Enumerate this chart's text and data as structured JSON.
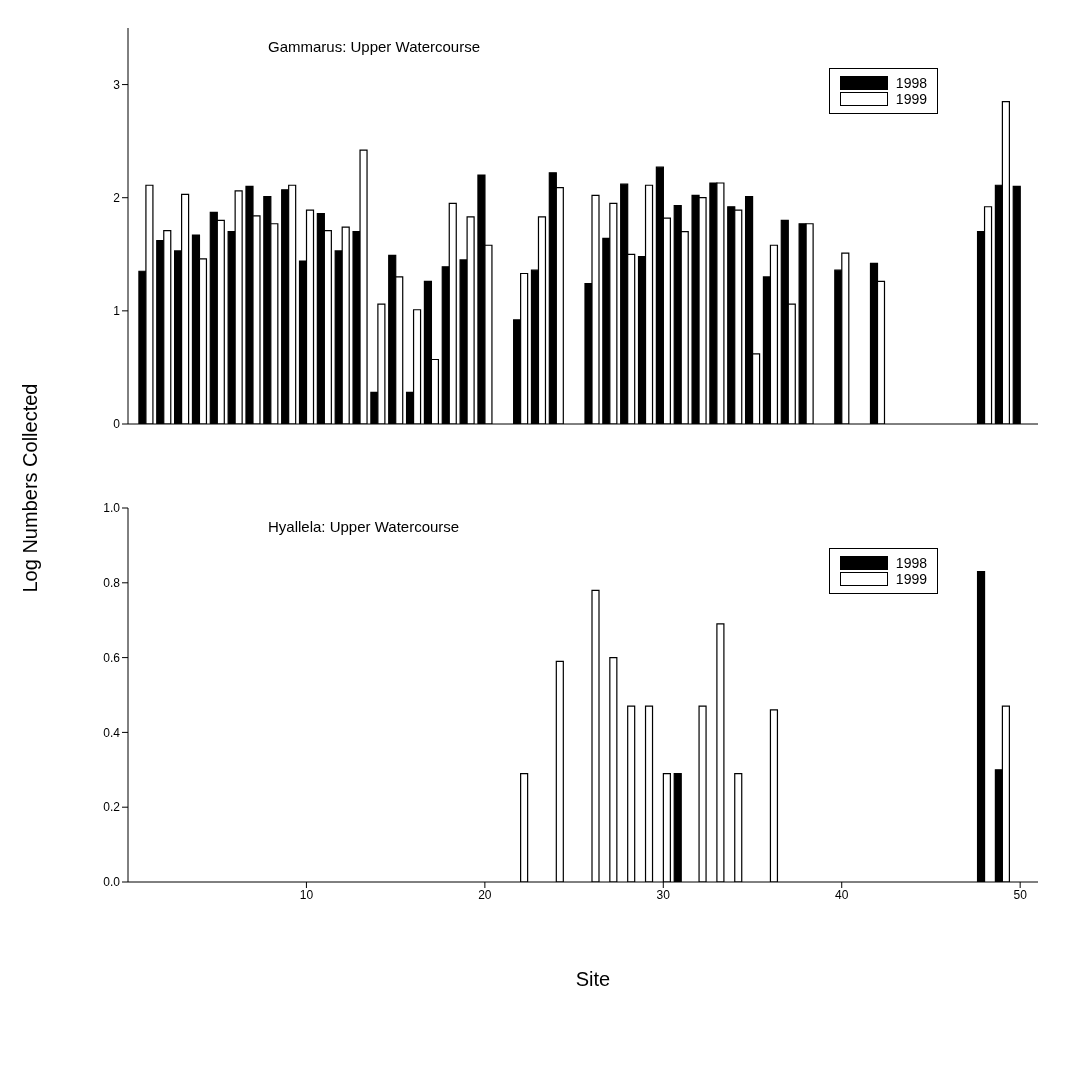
{
  "chart_data": [
    {
      "type": "bar",
      "title": "Gammarus: Upper Watercourse",
      "ylabel": "Log Numbers Collected",
      "x": [
        1,
        2,
        3,
        4,
        5,
        6,
        7,
        8,
        9,
        10,
        11,
        12,
        13,
        14,
        15,
        16,
        17,
        18,
        19,
        20,
        21,
        22,
        23,
        24,
        25,
        26,
        27,
        28,
        29,
        30,
        31,
        32,
        33,
        34,
        35,
        36,
        37,
        38,
        39,
        40,
        41,
        42,
        43,
        44,
        45,
        46,
        47,
        48,
        49,
        50
      ],
      "xlim": [
        0,
        51
      ],
      "xticks": [
        10,
        20,
        30,
        40,
        50
      ],
      "ylim": [
        0,
        3.5
      ],
      "yticks": [
        0,
        1,
        2,
        3
      ],
      "tick_labels": "y",
      "legend": "top right",
      "series": [
        {
          "name": "1998",
          "color": "#000000",
          "values": [
            1.35,
            1.62,
            1.53,
            1.67,
            1.87,
            1.7,
            2.1,
            2.01,
            2.07,
            1.44,
            1.86,
            1.53,
            1.7,
            0.28,
            1.49,
            0.28,
            1.26,
            1.39,
            1.45,
            2.2,
            null,
            0.92,
            1.36,
            2.22,
            null,
            1.24,
            1.64,
            2.12,
            1.48,
            2.27,
            1.93,
            2.02,
            2.13,
            1.92,
            2.01,
            1.3,
            1.8,
            1.77,
            null,
            1.36,
            null,
            1.42,
            null,
            null,
            null,
            null,
            null,
            1.7,
            2.11,
            2.1
          ]
        },
        {
          "name": "1999",
          "color": "#ffffff",
          "values": [
            2.11,
            1.71,
            2.03,
            1.46,
            1.8,
            2.06,
            1.84,
            1.77,
            2.11,
            1.89,
            1.71,
            1.74,
            2.42,
            1.06,
            1.3,
            1.01,
            0.57,
            1.95,
            1.83,
            1.58,
            null,
            1.33,
            1.83,
            2.09,
            null,
            2.02,
            1.95,
            1.5,
            2.11,
            1.82,
            1.7,
            2.0,
            2.13,
            1.89,
            0.62,
            1.58,
            1.06,
            1.77,
            null,
            1.51,
            null,
            1.26,
            null,
            null,
            null,
            null,
            null,
            1.92,
            2.85,
            null
          ]
        }
      ]
    },
    {
      "type": "bar",
      "title": "Hyallela: Upper Watercourse",
      "xlabel": "Site",
      "xlim": [
        0,
        51
      ],
      "xticks": [
        10,
        20,
        30,
        40,
        50
      ],
      "ylim": [
        0,
        1
      ],
      "yticks": [
        {
          "value": 0,
          "label": "0.0"
        },
        {
          "value": 0.2,
          "label": "0.2"
        },
        {
          "value": 0.4,
          "label": "0.4"
        },
        {
          "value": 0.6,
          "label": "0.6"
        },
        {
          "value": 0.8,
          "label": "0.8"
        },
        {
          "value": 1,
          "label": "1.0"
        }
      ],
      "legend": "top right",
      "series": [
        {
          "name": "1998",
          "color": "#000000",
          "x": [
            31,
            48,
            49
          ],
          "values": [
            0.29,
            0.83,
            0.3
          ]
        },
        {
          "name": "1999",
          "color": "#ffffff",
          "x": [
            22,
            24,
            26,
            27,
            28,
            29,
            30,
            32,
            33,
            34,
            36,
            49
          ],
          "values": [
            0.29,
            0.59,
            0.78,
            0.6,
            0.47,
            0.47,
            0.29,
            0.47,
            0.69,
            0.29,
            0.46,
            0.47
          ]
        }
      ]
    }
  ]
}
